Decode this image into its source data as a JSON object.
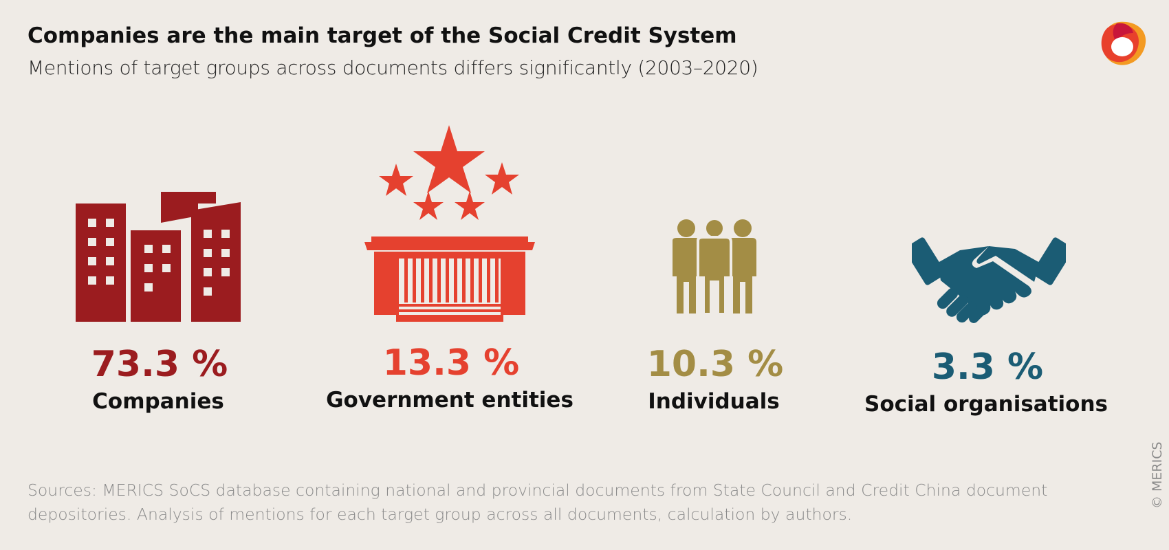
{
  "title": "Companies are the main target of the Social Credit System",
  "subtitle": "Mentions of target groups across documents differs significantly (2003–2020)",
  "chart_data": {
    "type": "bar",
    "categories": [
      "Companies",
      "Government entities",
      "Individuals",
      "Social organisations"
    ],
    "values": [
      73.3,
      13.3,
      10.3,
      3.3
    ],
    "value_labels": [
      "73.3 %",
      "13.3 %",
      "10.3 %",
      "3.3 %"
    ],
    "unit": "%",
    "colors": [
      "#9b1c1f",
      "#e5412f",
      "#a38d45",
      "#1b5c74"
    ],
    "icons": [
      "city-buildings-icon",
      "government-building-icon",
      "people-group-icon",
      "handshake-icon"
    ]
  },
  "source": "Sources: MERICS SoCS database containing national and provincial documents from State Council and Credit China document depositories. Analysis of mentions for each target group across all documents, calculation by authors.",
  "copyright": "© MERICS"
}
